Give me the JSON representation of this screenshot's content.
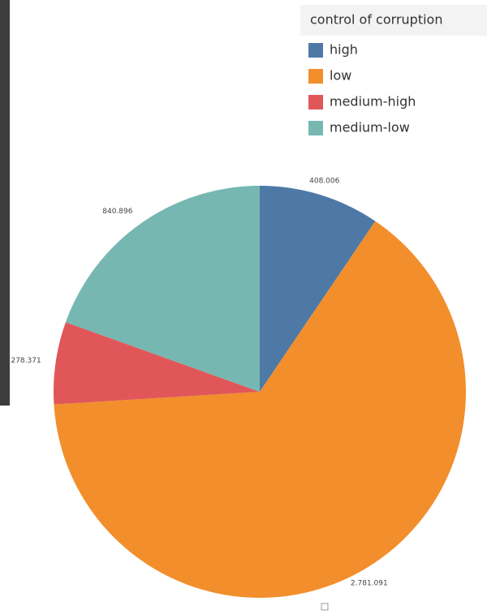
{
  "chart_data": {
    "type": "pie",
    "legend_title": "control of corruption",
    "categories": [
      "high",
      "low",
      "medium-high",
      "medium-low"
    ],
    "values": [
      408006,
      2781091,
      278371,
      840896
    ],
    "value_labels": [
      "408.006",
      "2.781.091",
      "278.371",
      "840.896"
    ],
    "colors": [
      "#4e79a7",
      "#f28e2b",
      "#e15759",
      "#76b7b2"
    ],
    "legend": "top-right"
  }
}
